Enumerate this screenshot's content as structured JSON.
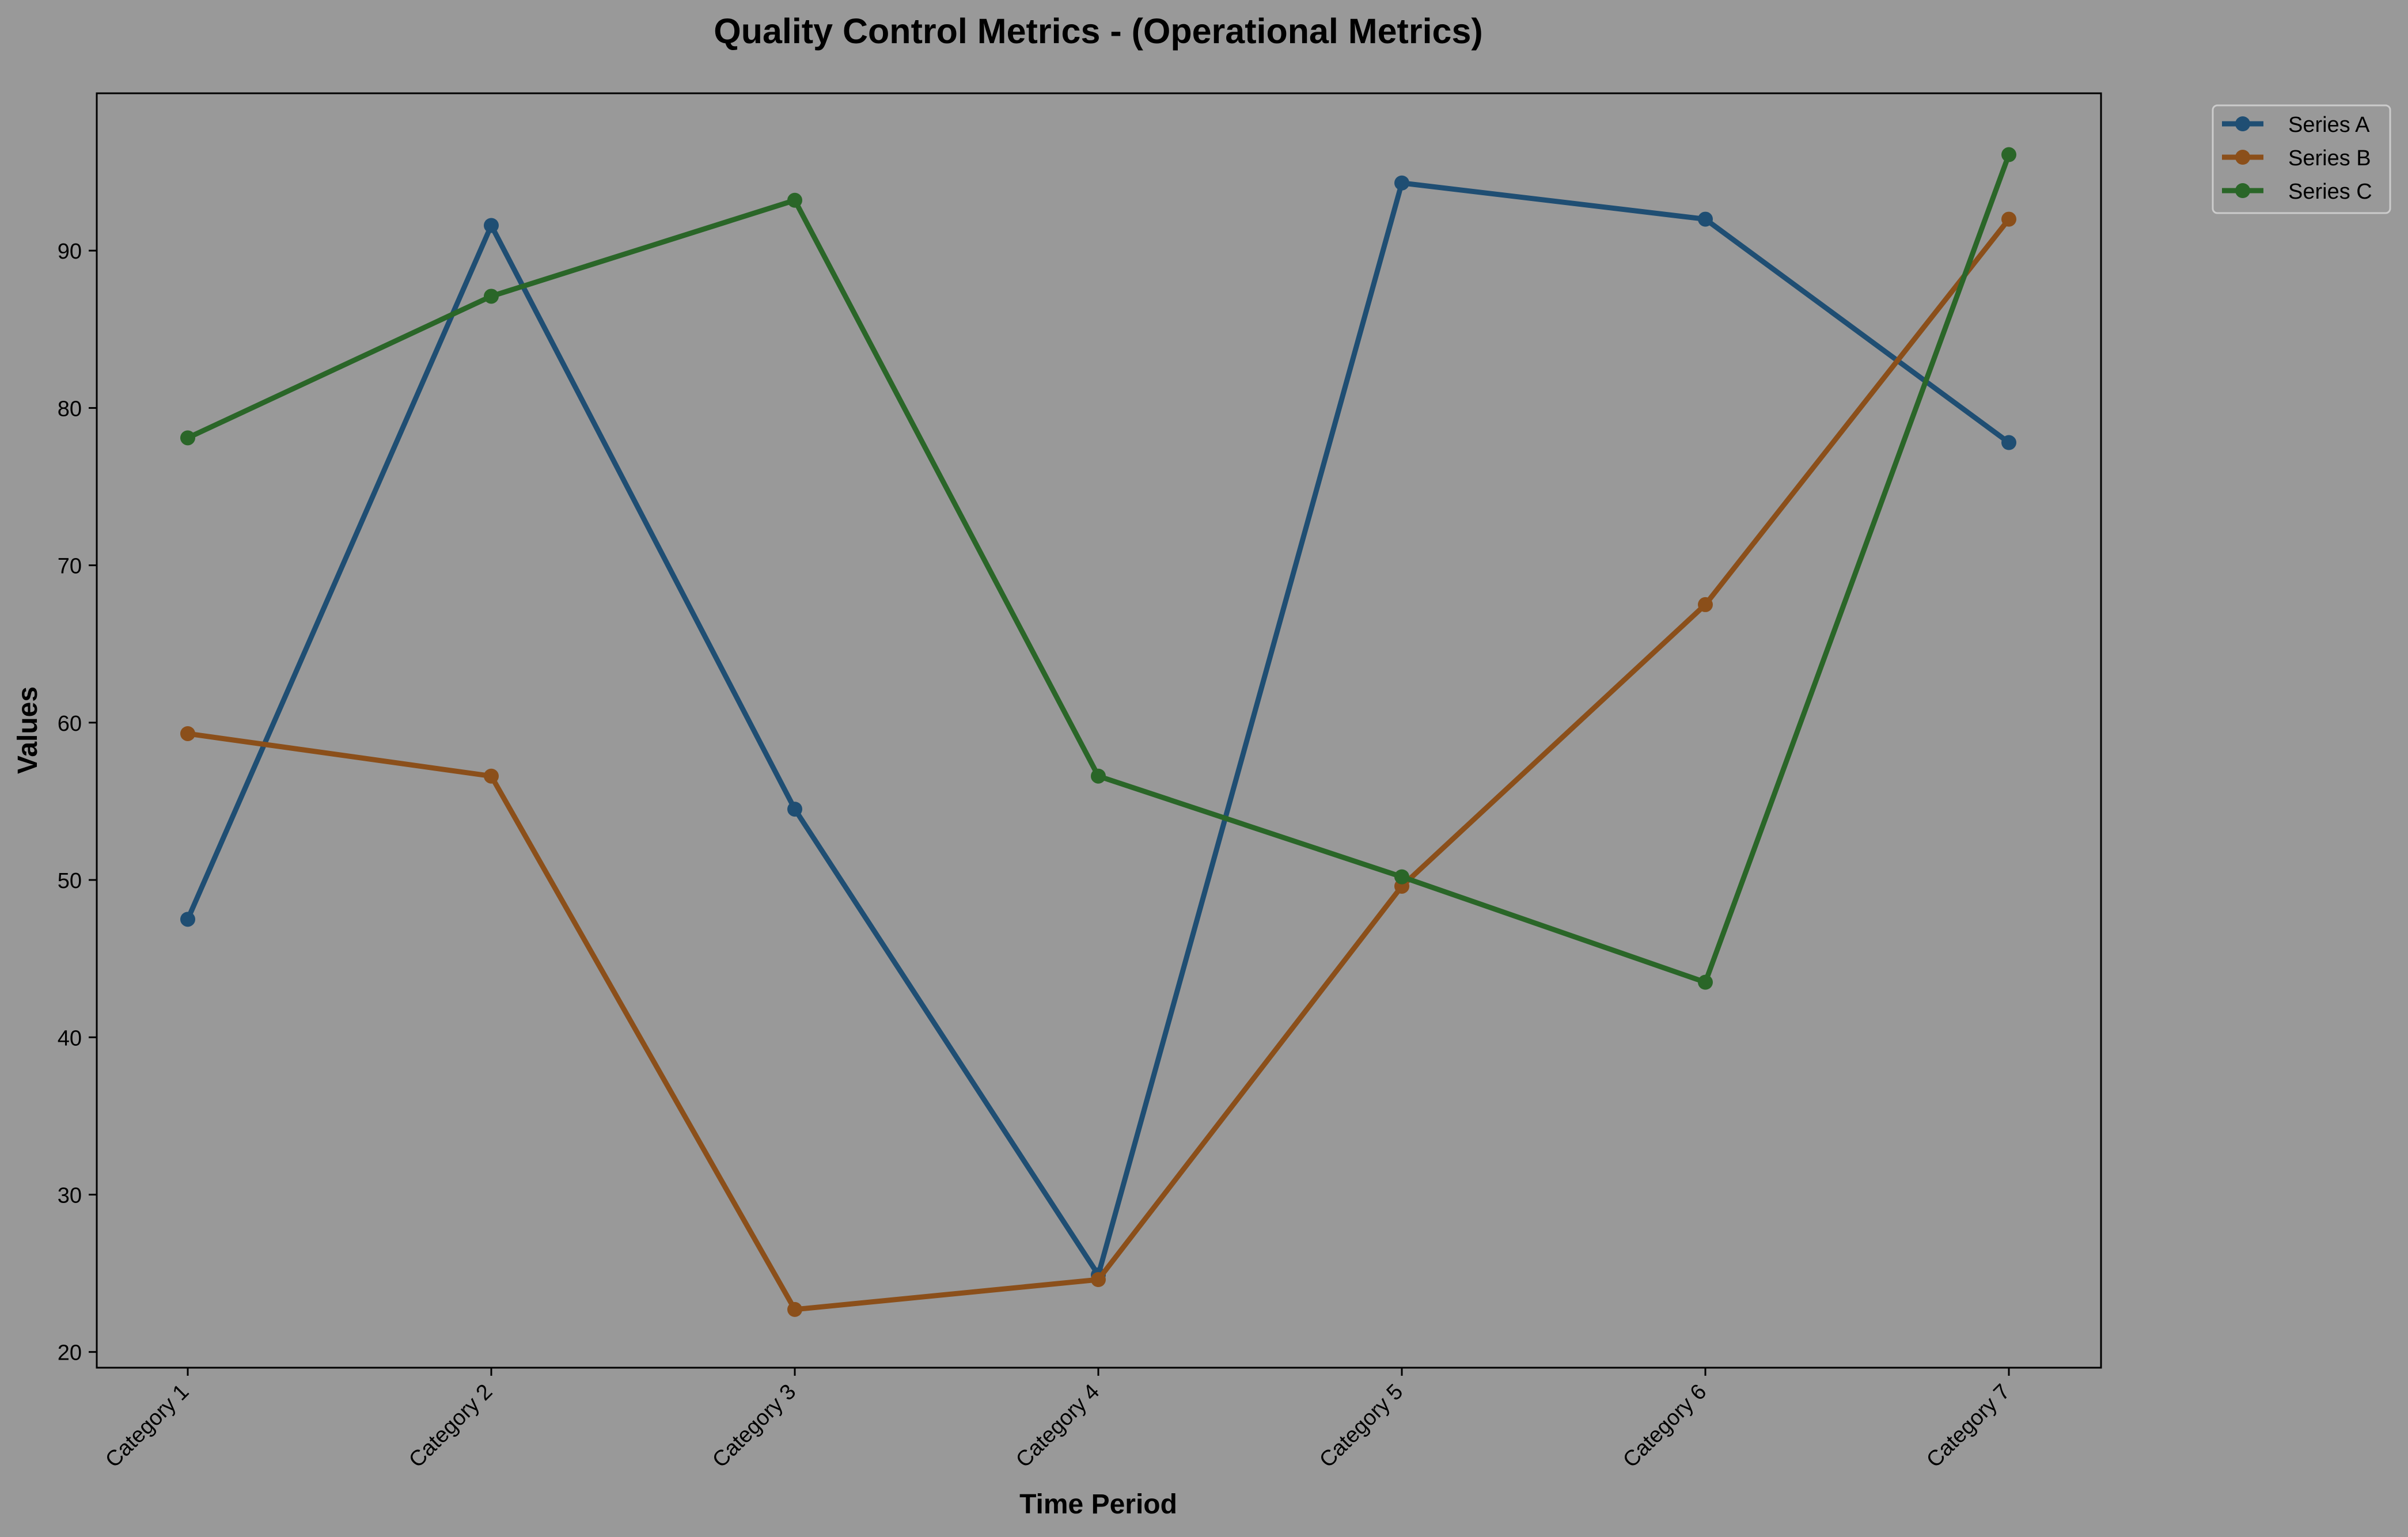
{
  "chart_data": {
    "type": "line",
    "title": "Quality Control Metrics - (Operational Metrics)",
    "xlabel": "Time Period",
    "ylabel": "Values",
    "categories": [
      "Category 1",
      "Category 2",
      "Category 3",
      "Category 4",
      "Category 5",
      "Category 6",
      "Category 7"
    ],
    "ylim": [
      19,
      100
    ],
    "yticks": [
      20,
      30,
      40,
      50,
      60,
      70,
      80,
      90
    ],
    "grid": false,
    "legend_position": "outside-top-right",
    "series": [
      {
        "name": "Series A",
        "color": "#1f4e73",
        "values": [
          47.5,
          91.6,
          54.5,
          24.9,
          94.3,
          92.0,
          77.8
        ]
      },
      {
        "name": "Series B",
        "color": "#8b4f1a",
        "values": [
          59.3,
          56.6,
          22.7,
          24.6,
          49.6,
          67.5,
          92.0
        ]
      },
      {
        "name": "Series C",
        "color": "#2a6628",
        "values": [
          78.1,
          87.1,
          93.2,
          56.6,
          50.2,
          43.5,
          96.1
        ]
      }
    ]
  },
  "colors": {
    "background": "#999999",
    "axes_edge": "#000000"
  }
}
